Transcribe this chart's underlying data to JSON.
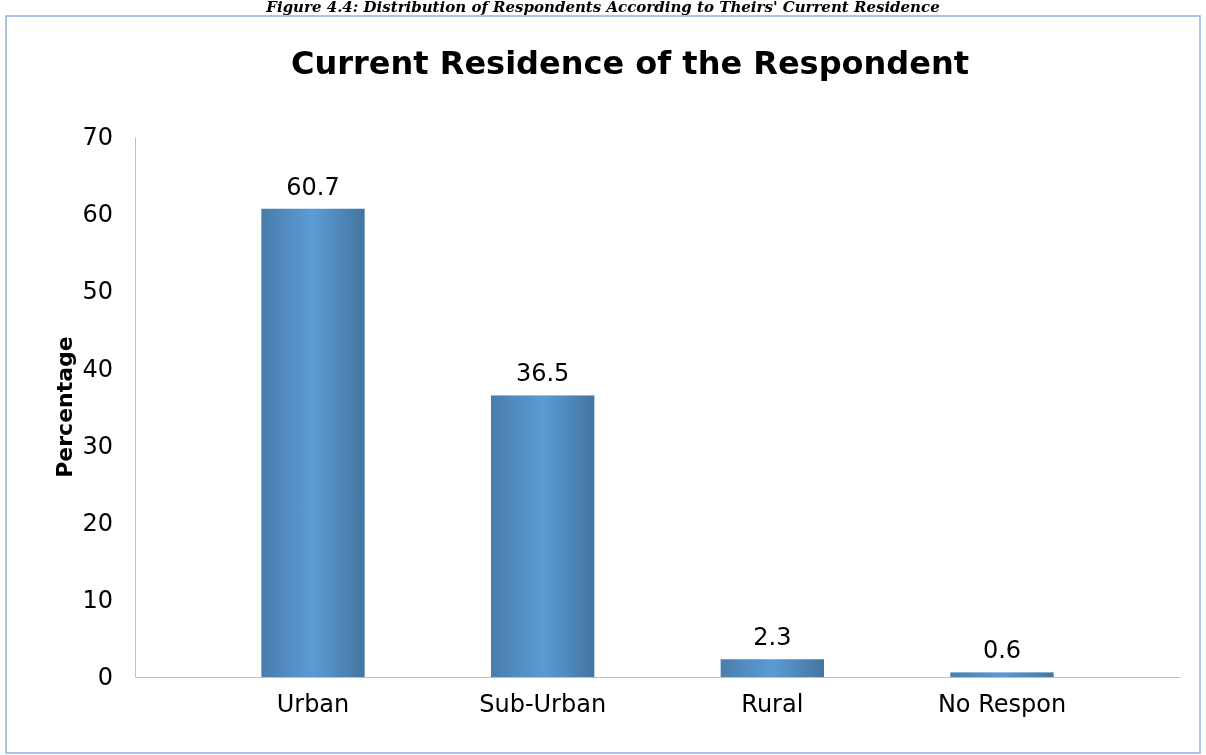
{
  "chart_data": {
    "type": "bar",
    "title": "Current Residence of the Respondent",
    "ylabel": "Percentage",
    "annotations": [
      "Figure 4.4: Distribution of Respondents According to Theirs' Current Residence"
    ],
    "categories": [
      "Urban",
      "Sub-Urban",
      "Rural",
      "No Respon"
    ],
    "values": [
      60.7,
      36.5,
      2.3,
      0.6
    ],
    "color": "#5b9bd5",
    "ylim": [
      0,
      70
    ],
    "yticks": [
      0,
      10,
      20,
      30,
      40,
      50,
      60,
      70
    ],
    "grid": false,
    "data_labels": true
  }
}
